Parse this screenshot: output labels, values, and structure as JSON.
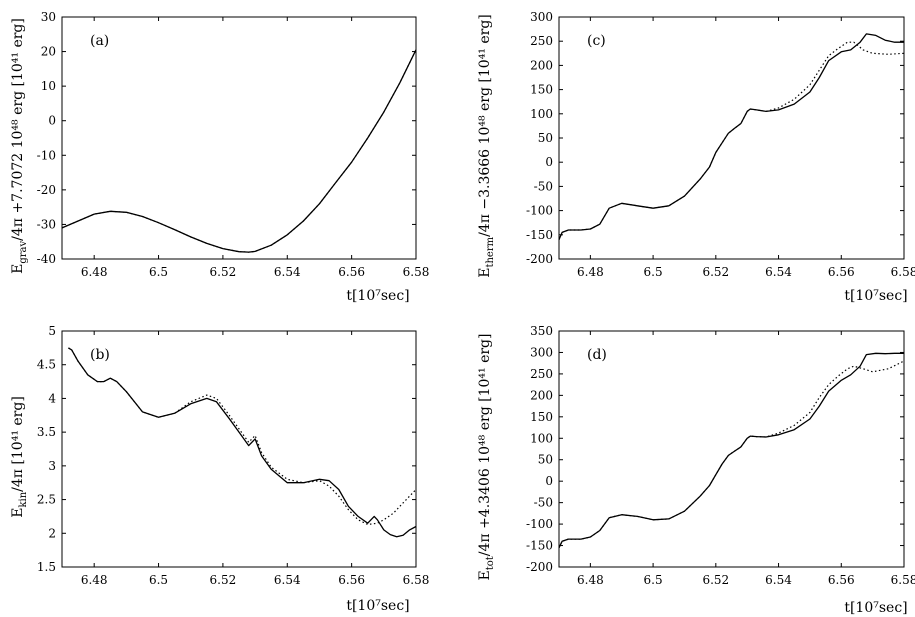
{
  "chart_data": [
    {
      "id": "a",
      "type": "line",
      "panel_label": "(a)",
      "xlabel": "t[10⁷sec]",
      "ylabel": "E_grav/4π +7.7072 10⁴⁸ erg [10⁴¹ erg]",
      "ylabel_text": "E",
      "ylabel_sub": "grav",
      "ylabel_tail": "/4π +7.7072 10⁴⁸ erg [10⁴¹ erg]",
      "xlim": [
        6.47,
        6.58
      ],
      "ylim": [
        -40,
        30
      ],
      "xticks": [
        "6.48",
        "6.5",
        "6.52",
        "6.54",
        "6.56",
        "6.58"
      ],
      "yticks": [
        "-40",
        "-30",
        "-20",
        "-10",
        "0",
        "10",
        "20",
        "30"
      ],
      "series": [
        {
          "name": "solid",
          "style": "solid",
          "x": [
            6.47,
            6.475,
            6.48,
            6.485,
            6.49,
            6.495,
            6.5,
            6.505,
            6.51,
            6.515,
            6.52,
            6.525,
            6.528,
            6.53,
            6.535,
            6.54,
            6.545,
            6.55,
            6.555,
            6.56,
            6.565,
            6.57,
            6.575,
            6.58
          ],
          "y": [
            -31,
            -29,
            -27,
            -26.2,
            -26.5,
            -27.7,
            -29.5,
            -31.5,
            -33.6,
            -35.5,
            -37,
            -37.9,
            -38,
            -37.8,
            -36,
            -33,
            -29,
            -24,
            -18,
            -12,
            -5,
            2.5,
            11,
            20.5
          ]
        },
        {
          "name": "dotted",
          "style": "dotted",
          "x": [
            6.47,
            6.475,
            6.48,
            6.485,
            6.49,
            6.495,
            6.5,
            6.505,
            6.51,
            6.515,
            6.52,
            6.525,
            6.528,
            6.53,
            6.535,
            6.54,
            6.545,
            6.55,
            6.555,
            6.56,
            6.565,
            6.57,
            6.575,
            6.58
          ],
          "y": [
            -31,
            -29,
            -27,
            -26.2,
            -26.5,
            -27.7,
            -29.5,
            -31.5,
            -33.6,
            -35.5,
            -37,
            -37.9,
            -38,
            -37.8,
            -36,
            -33,
            -29,
            -24,
            -18,
            -12,
            -5,
            2.5,
            11,
            20.5
          ]
        }
      ]
    },
    {
      "id": "c",
      "type": "line",
      "panel_label": "(c)",
      "xlabel": "t[10⁷sec]",
      "ylabel": "E_therm/4π −3.3666 10⁴⁸ erg [10⁴¹ erg]",
      "ylabel_text": "E",
      "ylabel_sub": "therm",
      "ylabel_tail": "/4π −3.3666 10⁴⁸ erg [10⁴¹ erg]",
      "xlim": [
        6.47,
        6.58
      ],
      "ylim": [
        -200,
        300
      ],
      "xticks": [
        "6.48",
        "6.5",
        "6.52",
        "6.54",
        "6.56",
        "6.58"
      ],
      "yticks": [
        "-200",
        "-150",
        "-100",
        "-50",
        "0",
        "50",
        "100",
        "150",
        "200",
        "250",
        "300"
      ],
      "series": [
        {
          "name": "solid",
          "style": "solid",
          "x": [
            6.47,
            6.471,
            6.473,
            6.477,
            6.48,
            6.483,
            6.486,
            6.49,
            6.495,
            6.5,
            6.505,
            6.51,
            6.515,
            6.518,
            6.52,
            6.522,
            6.524,
            6.526,
            6.528,
            6.53,
            6.531,
            6.533,
            6.536,
            6.54,
            6.545,
            6.55,
            6.553,
            6.556,
            6.56,
            6.563,
            6.566,
            6.568,
            6.571,
            6.574,
            6.577,
            6.58
          ],
          "y": [
            -160,
            -145,
            -140,
            -140,
            -138,
            -128,
            -95,
            -85,
            -90,
            -95,
            -90,
            -70,
            -35,
            -10,
            20,
            40,
            60,
            70,
            80,
            105,
            110,
            108,
            105,
            108,
            120,
            145,
            175,
            210,
            228,
            232,
            248,
            265,
            262,
            252,
            248,
            248
          ]
        },
        {
          "name": "dotted",
          "style": "dotted",
          "x": [
            6.47,
            6.471,
            6.473,
            6.477,
            6.48,
            6.483,
            6.486,
            6.49,
            6.495,
            6.5,
            6.505,
            6.51,
            6.515,
            6.518,
            6.52,
            6.522,
            6.524,
            6.526,
            6.528,
            6.53,
            6.531,
            6.533,
            6.536,
            6.54,
            6.545,
            6.55,
            6.553,
            6.556,
            6.559,
            6.562,
            6.564,
            6.567,
            6.57,
            6.575,
            6.58
          ],
          "y": [
            -160,
            -145,
            -140,
            -140,
            -138,
            -128,
            -95,
            -85,
            -90,
            -95,
            -90,
            -70,
            -35,
            -10,
            20,
            40,
            60,
            70,
            80,
            105,
            110,
            108,
            105,
            112,
            130,
            160,
            190,
            220,
            235,
            248,
            248,
            232,
            225,
            223,
            225
          ]
        }
      ]
    },
    {
      "id": "b",
      "type": "line",
      "panel_label": "(b)",
      "xlabel": "t[10⁷sec]",
      "ylabel": "E_kin/4π [10⁴¹ erg]",
      "ylabel_text": "E",
      "ylabel_sub": "kin",
      "ylabel_tail": "/4π   [10⁴¹ erg]",
      "xlim": [
        6.47,
        6.58
      ],
      "ylim": [
        1.5,
        5
      ],
      "xticks": [
        "6.48",
        "6.5",
        "6.52",
        "6.54",
        "6.56",
        "6.58"
      ],
      "yticks": [
        "1.5",
        "2",
        "2.5",
        "3",
        "3.5",
        "4",
        "4.5",
        "5"
      ],
      "series": [
        {
          "name": "solid",
          "style": "solid",
          "x": [
            6.472,
            6.473,
            6.475,
            6.478,
            6.481,
            6.483,
            6.485,
            6.487,
            6.49,
            6.495,
            6.5,
            6.505,
            6.51,
            6.515,
            6.518,
            6.522,
            6.525,
            6.528,
            6.53,
            6.532,
            6.535,
            6.54,
            6.545,
            6.55,
            6.553,
            6.556,
            6.559,
            6.562,
            6.565,
            6.567,
            6.568,
            6.57,
            6.572,
            6.574,
            6.576,
            6.578,
            6.58
          ],
          "y": [
            4.75,
            4.72,
            4.55,
            4.35,
            4.25,
            4.25,
            4.3,
            4.25,
            4.1,
            3.8,
            3.72,
            3.78,
            3.92,
            4.0,
            3.95,
            3.7,
            3.5,
            3.3,
            3.4,
            3.15,
            2.95,
            2.75,
            2.75,
            2.8,
            2.78,
            2.65,
            2.4,
            2.25,
            2.15,
            2.25,
            2.2,
            2.05,
            1.98,
            1.95,
            1.97,
            2.05,
            2.1
          ]
        },
        {
          "name": "dotted",
          "style": "dotted",
          "x": [
            6.472,
            6.473,
            6.475,
            6.478,
            6.481,
            6.483,
            6.485,
            6.487,
            6.49,
            6.495,
            6.5,
            6.505,
            6.51,
            6.515,
            6.518,
            6.522,
            6.525,
            6.528,
            6.53,
            6.532,
            6.535,
            6.54,
            6.545,
            6.55,
            6.553,
            6.556,
            6.559,
            6.562,
            6.565,
            6.568,
            6.57,
            6.573,
            6.576,
            6.58
          ],
          "y": [
            4.75,
            4.72,
            4.55,
            4.35,
            4.25,
            4.25,
            4.3,
            4.25,
            4.1,
            3.8,
            3.72,
            3.78,
            3.95,
            4.05,
            4.0,
            3.75,
            3.55,
            3.35,
            3.45,
            3.2,
            2.98,
            2.8,
            2.75,
            2.78,
            2.7,
            2.55,
            2.35,
            2.2,
            2.13,
            2.15,
            2.2,
            2.3,
            2.45,
            2.65
          ]
        }
      ]
    },
    {
      "id": "d",
      "type": "line",
      "panel_label": "(d)",
      "xlabel": "t[10⁷sec]",
      "ylabel": "E_tot/4π +4.3406 10⁴⁸ erg [10⁴¹ erg]",
      "ylabel_text": "E",
      "ylabel_sub": "tot",
      "ylabel_tail": "/4π +4.3406 10⁴⁸ erg [10⁴¹ erg]",
      "xlim": [
        6.47,
        6.58
      ],
      "ylim": [
        -200,
        350
      ],
      "xticks": [
        "6.48",
        "6.5",
        "6.52",
        "6.54",
        "6.56",
        "6.58"
      ],
      "yticks": [
        "-200",
        "-150",
        "-100",
        "-50",
        "0",
        "50",
        "100",
        "150",
        "200",
        "250",
        "300",
        "350"
      ],
      "series": [
        {
          "name": "solid",
          "style": "solid",
          "x": [
            6.47,
            6.471,
            6.473,
            6.477,
            6.48,
            6.483,
            6.486,
            6.49,
            6.495,
            6.5,
            6.505,
            6.51,
            6.515,
            6.518,
            6.52,
            6.522,
            6.524,
            6.526,
            6.528,
            6.53,
            6.531,
            6.533,
            6.536,
            6.54,
            6.545,
            6.55,
            6.553,
            6.556,
            6.56,
            6.563,
            6.566,
            6.568,
            6.571,
            6.574,
            6.577,
            6.58
          ],
          "y": [
            -155,
            -140,
            -135,
            -135,
            -130,
            -115,
            -85,
            -78,
            -82,
            -90,
            -88,
            -70,
            -35,
            -10,
            15,
            40,
            60,
            70,
            80,
            100,
            105,
            104,
            103,
            108,
            120,
            145,
            175,
            210,
            235,
            248,
            268,
            295,
            298,
            297,
            298,
            298
          ]
        },
        {
          "name": "dotted",
          "style": "dotted",
          "x": [
            6.47,
            6.471,
            6.473,
            6.477,
            6.48,
            6.483,
            6.486,
            6.49,
            6.495,
            6.5,
            6.505,
            6.51,
            6.515,
            6.518,
            6.52,
            6.522,
            6.524,
            6.526,
            6.528,
            6.53,
            6.531,
            6.533,
            6.536,
            6.54,
            6.545,
            6.55,
            6.553,
            6.556,
            6.559,
            6.562,
            6.564,
            6.567,
            6.57,
            6.575,
            6.58
          ],
          "y": [
            -155,
            -140,
            -135,
            -135,
            -130,
            -115,
            -85,
            -78,
            -82,
            -90,
            -88,
            -70,
            -35,
            -10,
            15,
            40,
            60,
            70,
            80,
            100,
            105,
            104,
            103,
            112,
            130,
            160,
            195,
            225,
            245,
            262,
            268,
            262,
            255,
            262,
            280
          ]
        }
      ]
    }
  ]
}
